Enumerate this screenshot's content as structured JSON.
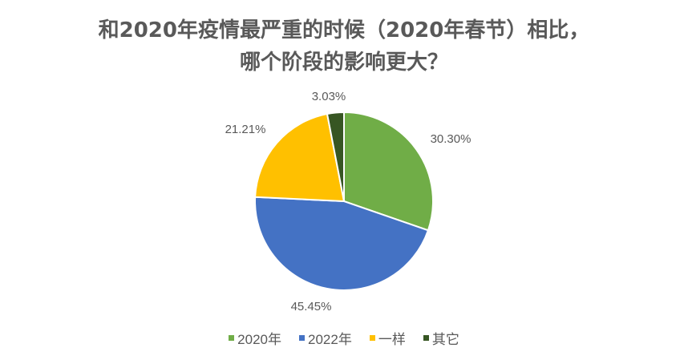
{
  "chart_data": {
    "type": "pie",
    "title_lines": [
      "和2020年疫情最严重的时候（2020年春节）相比，",
      "哪个阶段的影响更大？"
    ],
    "categories": [
      "2020年",
      "2022年",
      "一样",
      "其它"
    ],
    "values": [
      30.3,
      45.45,
      21.21,
      3.03
    ],
    "data_labels": [
      "30.30%",
      "45.45%",
      "21.21%",
      "3.03%"
    ],
    "colors": [
      "#70AD47",
      "#4472C4",
      "#FFC000",
      "#375623"
    ],
    "legend_position": "bottom",
    "start_angle": "top, clockwise"
  }
}
